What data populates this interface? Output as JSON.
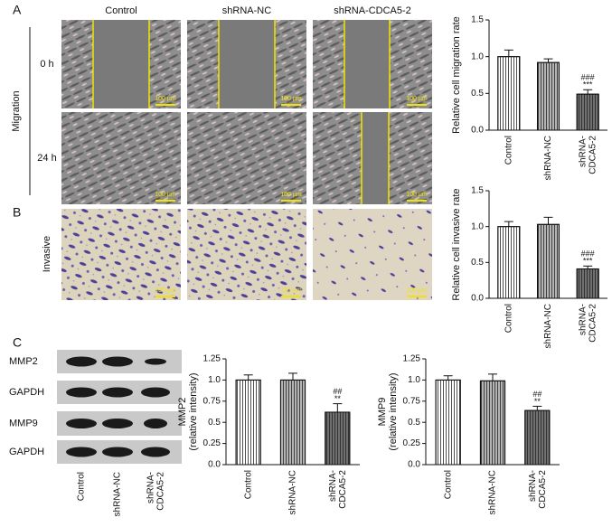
{
  "figure": {
    "panel_labels": [
      "A",
      "B",
      "C"
    ],
    "columns": [
      "Control",
      "shRNA-NC",
      "shRNA-CDCA5-2"
    ],
    "rows": [
      "0 h",
      "24 h"
    ],
    "migration": "Migration",
    "invasive": "Invasive",
    "scale_bar": "100 µm",
    "blot_labels": [
      "MMP2",
      "GAPDH",
      "MMP9",
      "GAPDH"
    ],
    "blot_lanes": [
      "Control",
      "shRNA-NC",
      "shRNA-\nCDCA5-2"
    ]
  },
  "chart_data": [
    {
      "type": "bar",
      "y_label": "Relative cell migration rate",
      "categories": [
        "Control",
        "shRNA-NC",
        "shRNA-\nCDCA5-2"
      ],
      "values": [
        1.0,
        0.92,
        0.49
      ],
      "errors": [
        0.09,
        0.05,
        0.06
      ],
      "colors": [
        "#ffffff",
        "#b4b4b4",
        "#707070"
      ],
      "annotations": [
        [],
        [],
        [
          "###",
          "***"
        ]
      ],
      "ylim": [
        0,
        1.5
      ],
      "yticks": [
        {
          "value": 0,
          "label": "0.0"
        },
        0.5,
        {
          "value": 1,
          "label": "1.0"
        },
        1.5
      ]
    },
    {
      "type": "bar",
      "y_label": "Relative cell invasive rate",
      "categories": [
        "Control",
        "shRNA-NC",
        "shRNA-\nCDCA5-2"
      ],
      "values": [
        1.0,
        1.03,
        0.41
      ],
      "errors": [
        0.07,
        0.1,
        0.04
      ],
      "colors": [
        "#ffffff",
        "#b4b4b4",
        "#707070"
      ],
      "annotations": [
        [],
        [],
        [
          "###",
          "***"
        ]
      ],
      "ylim": [
        0,
        1.5
      ],
      "yticks": [
        {
          "value": 0,
          "label": "0.0"
        },
        0.5,
        {
          "value": 1,
          "label": "1.0"
        },
        1.5
      ]
    },
    {
      "type": "bar",
      "y_label": "MMP2\n(relative intensity)",
      "categories": [
        "Control",
        "shRNA-NC",
        "shRNA-\nCDCA5-2"
      ],
      "values": [
        1.0,
        1.0,
        0.62
      ],
      "errors": [
        0.06,
        0.08,
        0.1
      ],
      "colors": [
        "#ffffff",
        "#b4b4b4",
        "#707070"
      ],
      "annotations": [
        [],
        [],
        [
          "##",
          "**"
        ]
      ],
      "ylim": [
        0,
        1.25
      ],
      "yticks": [
        {
          "value": 0,
          "label": "0.0"
        },
        0.25,
        0.5,
        0.75,
        {
          "value": 1,
          "label": "1.0"
        },
        1.25
      ]
    },
    {
      "type": "bar",
      "y_label": "MMP9\n(relative intensity)",
      "categories": [
        "Control",
        "shRNA-NC",
        "shRNA-\nCDCA5-2"
      ],
      "values": [
        1.0,
        0.99,
        0.64
      ],
      "errors": [
        0.05,
        0.08,
        0.05
      ],
      "colors": [
        "#ffffff",
        "#b4b4b4",
        "#707070"
      ],
      "annotations": [
        [],
        [],
        [
          "##",
          "**"
        ]
      ],
      "ylim": [
        0,
        1.25
      ],
      "yticks": [
        {
          "value": 0,
          "label": "0.0"
        },
        0.25,
        0.5,
        0.75,
        {
          "value": 1,
          "label": "1.0"
        },
        1.25
      ]
    }
  ]
}
